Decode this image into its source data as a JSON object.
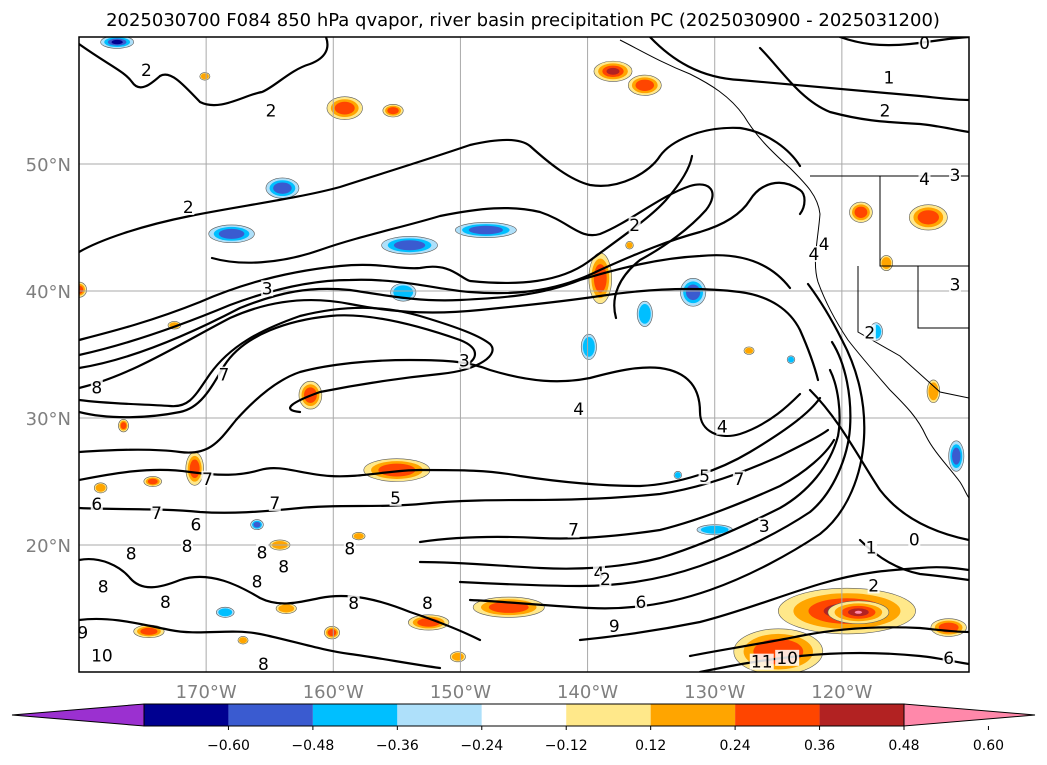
{
  "title": "2025030700 F084 850 hPa qvapor, river basin precipitation PC (2025030900 - 2025031200)",
  "map": {
    "lon_range": [
      -180,
      -110
    ],
    "lat_range": [
      10,
      60
    ],
    "gridlines": true,
    "lon_ticks": [
      {
        "value": -170,
        "label": "170°W"
      },
      {
        "value": -160,
        "label": "160°W"
      },
      {
        "value": -150,
        "label": "150°W"
      },
      {
        "value": -140,
        "label": "140°W"
      },
      {
        "value": -130,
        "label": "130°W"
      },
      {
        "value": -120,
        "label": "120°W"
      }
    ],
    "lat_ticks": [
      {
        "value": 50,
        "label": "50°N"
      },
      {
        "value": 40,
        "label": "40°N"
      },
      {
        "value": 30,
        "label": "30°N"
      },
      {
        "value": 20,
        "label": "20°N"
      }
    ]
  },
  "colorbar": {
    "orientation": "horizontal",
    "extend": "both",
    "levels": [
      -0.72,
      -0.6,
      -0.48,
      -0.36,
      -0.24,
      -0.12,
      0.12,
      0.24,
      0.36,
      0.48,
      0.6,
      0.72
    ],
    "colors": [
      "#9b30d0",
      "#000090",
      "#3a5bd0",
      "#00bfff",
      "#aee0fa",
      "#ffffff",
      "#ffe88a",
      "#ffa500",
      "#ff4500",
      "#b22222",
      "#ff88aa"
    ],
    "tick_labels": [
      "−0.60",
      "−0.48",
      "−0.36",
      "−0.24",
      "−0.12",
      "0.12",
      "0.24",
      "0.36",
      "0.48",
      "0.60"
    ]
  },
  "contour_labels": [
    {
      "text": "0",
      "lon": -113.5,
      "lat": 59.2
    },
    {
      "text": "1",
      "lon": -116.3,
      "lat": 56.5
    },
    {
      "text": "2",
      "lon": -116.6,
      "lat": 53.9
    },
    {
      "text": "2",
      "lon": -174.7,
      "lat": 57.1
    },
    {
      "text": "2",
      "lon": -164.9,
      "lat": 53.9
    },
    {
      "text": "2",
      "lon": -171.4,
      "lat": 46.3
    },
    {
      "text": "2",
      "lon": -136.3,
      "lat": 44.9
    },
    {
      "text": "3",
      "lon": -165.2,
      "lat": 39.9
    },
    {
      "text": "3",
      "lon": -149.7,
      "lat": 34.2
    },
    {
      "text": "3",
      "lon": -111.1,
      "lat": 48.8
    },
    {
      "text": "3",
      "lon": -111.1,
      "lat": 40.2
    },
    {
      "text": "4",
      "lon": -113.5,
      "lat": 48.5
    },
    {
      "text": "4",
      "lon": -121.4,
      "lat": 43.4
    },
    {
      "text": "4",
      "lon": -122.2,
      "lat": 42.6
    },
    {
      "text": "2",
      "lon": -117.8,
      "lat": 36.4
    },
    {
      "text": "7",
      "lon": -168.6,
      "lat": 33.1
    },
    {
      "text": "8",
      "lon": -178.6,
      "lat": 32.1
    },
    {
      "text": "4",
      "lon": -140.7,
      "lat": 30.4
    },
    {
      "text": "4",
      "lon": -129.4,
      "lat": 29.0
    },
    {
      "text": "5",
      "lon": -130.8,
      "lat": 25.1
    },
    {
      "text": "7",
      "lon": -128.1,
      "lat": 24.9
    },
    {
      "text": "3",
      "lon": -126.1,
      "lat": 21.2
    },
    {
      "text": "7",
      "lon": -169.9,
      "lat": 24.9
    },
    {
      "text": "6",
      "lon": -178.6,
      "lat": 22.9
    },
    {
      "text": "6",
      "lon": -170.8,
      "lat": 21.3
    },
    {
      "text": "7",
      "lon": -173.9,
      "lat": 22.2
    },
    {
      "text": "7",
      "lon": -164.6,
      "lat": 23.0
    },
    {
      "text": "5",
      "lon": -155.1,
      "lat": 23.4
    },
    {
      "text": "7",
      "lon": -141.1,
      "lat": 20.9
    },
    {
      "text": "4",
      "lon": -139.1,
      "lat": 17.5
    },
    {
      "text": "2",
      "lon": -138.6,
      "lat": 17.0
    },
    {
      "text": "6",
      "lon": -135.8,
      "lat": 15.2
    },
    {
      "text": "9",
      "lon": -137.9,
      "lat": 13.3
    },
    {
      "text": "1",
      "lon": -117.7,
      "lat": 19.5
    },
    {
      "text": "0",
      "lon": -114.3,
      "lat": 20.1
    },
    {
      "text": "2",
      "lon": -117.5,
      "lat": 16.5
    },
    {
      "text": "10",
      "lon": -124.3,
      "lat": 10.8
    },
    {
      "text": "11",
      "lon": -126.3,
      "lat": 10.5
    },
    {
      "text": "6",
      "lon": -111.6,
      "lat": 10.8
    },
    {
      "text": "8",
      "lon": -175.9,
      "lat": 19.0
    },
    {
      "text": "8",
      "lon": -171.5,
      "lat": 19.6
    },
    {
      "text": "8",
      "lon": -165.6,
      "lat": 19.1
    },
    {
      "text": "8",
      "lon": -163.9,
      "lat": 18.0
    },
    {
      "text": "8",
      "lon": -158.7,
      "lat": 19.4
    },
    {
      "text": "8",
      "lon": -166.0,
      "lat": 16.8
    },
    {
      "text": "8",
      "lon": -178.1,
      "lat": 16.4
    },
    {
      "text": "8",
      "lon": -173.2,
      "lat": 15.2
    },
    {
      "text": "8",
      "lon": -158.4,
      "lat": 15.1
    },
    {
      "text": "8",
      "lon": -152.6,
      "lat": 15.1
    },
    {
      "text": "9",
      "lon": -179.7,
      "lat": 12.8
    },
    {
      "text": "10",
      "lon": -178.2,
      "lat": 11.0
    },
    {
      "text": "8",
      "lon": -165.5,
      "lat": 10.3
    }
  ],
  "precip_blobs": [
    {
      "lon": -159.1,
      "lat": 54.4,
      "rx": 1.4,
      "ry": 0.9,
      "value": 0.42
    },
    {
      "lon": -155.3,
      "lat": 54.2,
      "rx": 0.8,
      "ry": 0.5,
      "value": 0.38
    },
    {
      "lon": -170.9,
      "lat": 26.0,
      "rx": 0.7,
      "ry": 1.3,
      "value": 0.42
    },
    {
      "lon": -155.0,
      "lat": 25.9,
      "rx": 2.6,
      "ry": 0.9,
      "value": 0.42
    },
    {
      "lon": -146.2,
      "lat": 15.1,
      "rx": 2.8,
      "ry": 0.8,
      "value": 0.45
    },
    {
      "lon": -152.5,
      "lat": 13.9,
      "rx": 1.6,
      "ry": 0.6,
      "value": 0.38
    },
    {
      "lon": -139.0,
      "lat": 41.0,
      "rx": 0.9,
      "ry": 2.0,
      "value": 0.42
    },
    {
      "lon": -161.8,
      "lat": 31.8,
      "rx": 0.9,
      "ry": 1.1,
      "value": 0.38
    },
    {
      "lon": -166.0,
      "lat": 21.6,
      "rx": 0.5,
      "ry": 0.4,
      "value": -0.38
    },
    {
      "lon": -148.0,
      "lat": 44.8,
      "rx": 2.4,
      "ry": 0.6,
      "value": -0.42
    },
    {
      "lon": -154.0,
      "lat": 43.6,
      "rx": 2.2,
      "ry": 0.7,
      "value": -0.42
    },
    {
      "lon": -168.0,
      "lat": 44.5,
      "rx": 1.8,
      "ry": 0.7,
      "value": -0.38
    },
    {
      "lon": -164.0,
      "lat": 48.1,
      "rx": 1.3,
      "ry": 0.8,
      "value": -0.38
    },
    {
      "lon": -154.5,
      "lat": 39.9,
      "rx": 1.0,
      "ry": 0.7,
      "value": -0.34
    },
    {
      "lon": -177.0,
      "lat": 59.6,
      "rx": 1.3,
      "ry": 0.5,
      "value": -0.5
    },
    {
      "lon": -136.7,
      "lat": 43.6,
      "rx": 0.3,
      "ry": 0.3,
      "value": 0.3
    },
    {
      "lon": -131.7,
      "lat": 39.9,
      "rx": 1.0,
      "ry": 1.1,
      "value": -0.38
    },
    {
      "lon": -135.5,
      "lat": 38.2,
      "rx": 0.6,
      "ry": 1.0,
      "value": -0.3
    },
    {
      "lon": -139.9,
      "lat": 35.6,
      "rx": 0.6,
      "ry": 1.0,
      "value": -0.36
    },
    {
      "lon": -130.0,
      "lat": 21.2,
      "rx": 1.4,
      "ry": 0.4,
      "value": -0.3
    },
    {
      "lon": -132.9,
      "lat": 25.5,
      "rx": 0.3,
      "ry": 0.3,
      "value": -0.3
    },
    {
      "lon": -118.5,
      "lat": 46.2,
      "rx": 0.9,
      "ry": 0.8,
      "value": 0.38
    },
    {
      "lon": -113.2,
      "lat": 45.8,
      "rx": 1.5,
      "ry": 1.0,
      "value": 0.4
    },
    {
      "lon": -116.5,
      "lat": 42.2,
      "rx": 0.5,
      "ry": 0.6,
      "value": 0.36
    },
    {
      "lon": -112.8,
      "lat": 32.1,
      "rx": 0.5,
      "ry": 0.9,
      "value": 0.36
    },
    {
      "lon": -111.0,
      "lat": 27.0,
      "rx": 0.6,
      "ry": 1.2,
      "value": -0.4
    },
    {
      "lon": -117.3,
      "lat": 36.8,
      "rx": 0.5,
      "ry": 0.7,
      "value": -0.34
    },
    {
      "lon": -138.0,
      "lat": 57.3,
      "rx": 1.5,
      "ry": 0.8,
      "value": 0.55
    },
    {
      "lon": -135.5,
      "lat": 56.2,
      "rx": 1.3,
      "ry": 0.8,
      "value": 0.45
    },
    {
      "lon": -119.6,
      "lat": 14.8,
      "rx": 5.4,
      "ry": 1.8,
      "value": 0.55
    },
    {
      "lon": -118.7,
      "lat": 14.7,
      "rx": 2.4,
      "ry": 0.9,
      "value": 0.66
    },
    {
      "lon": -125.0,
      "lat": 11.6,
      "rx": 3.5,
      "ry": 1.8,
      "value": 0.46
    },
    {
      "lon": -111.6,
      "lat": 13.5,
      "rx": 1.4,
      "ry": 0.7,
      "value": 0.42
    },
    {
      "lon": -170.1,
      "lat": 56.9,
      "rx": 0.4,
      "ry": 0.3,
      "value": 0.36
    },
    {
      "lon": -180.0,
      "lat": 40.1,
      "rx": 0.6,
      "ry": 0.6,
      "value": 0.42
    },
    {
      "lon": -176.5,
      "lat": 29.4,
      "rx": 0.4,
      "ry": 0.5,
      "value": 0.38
    },
    {
      "lon": -174.2,
      "lat": 25.0,
      "rx": 0.7,
      "ry": 0.4,
      "value": 0.38
    },
    {
      "lon": -160.1,
      "lat": 13.1,
      "rx": 0.6,
      "ry": 0.5,
      "value": 0.38
    },
    {
      "lon": -174.5,
      "lat": 13.2,
      "rx": 1.2,
      "ry": 0.5,
      "value": 0.38
    },
    {
      "lon": -163.7,
      "lat": 15.0,
      "rx": 0.8,
      "ry": 0.4,
      "value": 0.3
    },
    {
      "lon": -158.0,
      "lat": 20.7,
      "rx": 0.5,
      "ry": 0.3,
      "value": 0.3
    },
    {
      "lon": -127.3,
      "lat": 35.3,
      "rx": 0.4,
      "ry": 0.3,
      "value": 0.3
    },
    {
      "lon": -124.0,
      "lat": 34.6,
      "rx": 0.3,
      "ry": 0.3,
      "value": -0.3
    },
    {
      "lon": -172.5,
      "lat": 37.3,
      "rx": 0.5,
      "ry": 0.3,
      "value": 0.3
    },
    {
      "lon": -164.2,
      "lat": 20.0,
      "rx": 0.8,
      "ry": 0.4,
      "value": 0.3
    },
    {
      "lon": -167.1,
      "lat": 12.5,
      "rx": 0.4,
      "ry": 0.3,
      "value": 0.3
    },
    {
      "lon": -178.3,
      "lat": 24.5,
      "rx": 0.5,
      "ry": 0.4,
      "value": 0.3
    },
    {
      "lon": -168.5,
      "lat": 14.7,
      "rx": 0.7,
      "ry": 0.4,
      "value": -0.3
    },
    {
      "lon": -150.2,
      "lat": 11.2,
      "rx": 0.6,
      "ry": 0.4,
      "value": 0.3
    }
  ]
}
